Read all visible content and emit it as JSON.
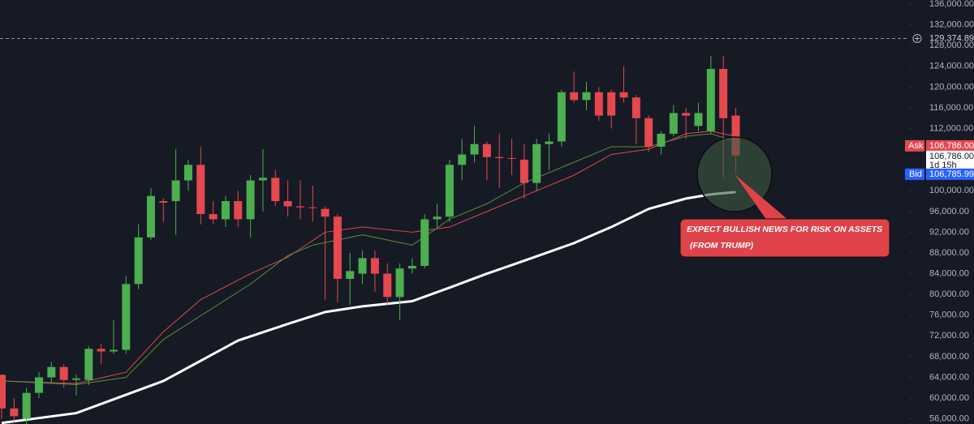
{
  "chart_data": {
    "type": "candlestick",
    "open": [
      64500,
      58000,
      56000,
      61000,
      64000,
      66000,
      63500,
      63500,
      69500,
      69000,
      69300,
      82000,
      91000,
      98000,
      98000,
      102000,
      105000,
      95500,
      94500,
      98000,
      94500,
      102000,
      102500,
      98000,
      97000,
      96800,
      96500,
      95000,
      83000,
      84000,
      87000,
      84000,
      79500,
      85000,
      85500,
      94500,
      95000,
      105000,
      107000,
      109000,
      106500,
      106300,
      106000,
      101500,
      109000,
      109500,
      119000,
      117500,
      119000,
      119000,
      119000,
      118000,
      114000,
      108500,
      111000,
      115000,
      112500,
      111500,
      123500,
      114500
    ],
    "high": [
      64500,
      60000,
      62000,
      65000,
      67000,
      66500,
      64500,
      70000,
      70500,
      75000,
      83500,
      93500,
      100500,
      98500,
      108000,
      106000,
      108500,
      98000,
      99000,
      100000,
      103000,
      108000,
      104000,
      102000,
      102000,
      101000,
      97000,
      95500,
      88000,
      88500,
      88500,
      86000,
      86000,
      87000,
      95500,
      97500,
      106000,
      110000,
      112500,
      109500,
      111000,
      110000,
      109000,
      110000,
      111000,
      119500,
      123000,
      121000,
      120000,
      119500,
      124000,
      118500,
      114500,
      111500,
      116500,
      116000,
      117000,
      126000,
      126000,
      116000
    ],
    "low": [
      56000,
      55500,
      55000,
      60000,
      63000,
      62000,
      60500,
      62500,
      66500,
      68500,
      68500,
      81000,
      90500,
      94000,
      91500,
      100000,
      93500,
      93500,
      93000,
      93000,
      91000,
      96000,
      97000,
      95000,
      94500,
      94000,
      79000,
      78500,
      78000,
      82000,
      80500,
      78000,
      75000,
      84000,
      85000,
      93000,
      94000,
      102000,
      105500,
      102000,
      100500,
      103000,
      98500,
      100000,
      104000,
      108500,
      117000,
      115500,
      113500,
      112000,
      117000,
      109000,
      107500,
      107000,
      110500,
      110000,
      111500,
      111000,
      102500,
      103500
    ],
    "close": [
      58000,
      56500,
      61000,
      64000,
      66000,
      63500,
      63800,
      69500,
      69000,
      69300,
      82000,
      91000,
      99000,
      97700,
      102000,
      105000,
      95500,
      94500,
      98000,
      94500,
      102000,
      102500,
      98000,
      97000,
      96800,
      96700,
      95000,
      83000,
      84500,
      87000,
      84000,
      79500,
      85000,
      85500,
      94500,
      95000,
      105000,
      107000,
      109000,
      106500,
      106300,
      106200,
      101500,
      109000,
      109500,
      119000,
      117500,
      119000,
      114500,
      114500,
      118000,
      114000,
      108500,
      111000,
      115000,
      114500,
      115000,
      123500,
      114000,
      106786
    ],
    "up_color": "#4caf50",
    "down_color": "#e5484f",
    "ylim": [
      55000,
      136800
    ],
    "yticks": [
      {
        "value": 56000,
        "label": "56,000.00"
      },
      {
        "value": 60000,
        "label": "60,000.00"
      },
      {
        "value": 64000,
        "label": "64,000.00"
      },
      {
        "value": 68000,
        "label": "68,000.00"
      },
      {
        "value": 72000,
        "label": "72,000.00"
      },
      {
        "value": 76000,
        "label": "76,000.00"
      },
      {
        "value": 80000,
        "label": "80,000.00"
      },
      {
        "value": 84000,
        "label": "84,000.00"
      },
      {
        "value": 88000,
        "label": "88,000.00"
      },
      {
        "value": 92000,
        "label": "92,000.00"
      },
      {
        "value": 96000,
        "label": "96,000.00"
      },
      {
        "value": 100000,
        "label": "100,000.00"
      },
      {
        "value": 104000,
        "label": "104,000.00"
      },
      {
        "value": 108000,
        "label": "108,000.00"
      },
      {
        "value": 112000,
        "label": "112,000.00"
      },
      {
        "value": 116000,
        "label": "116,000.00"
      },
      {
        "value": 120000,
        "label": "120,000.00"
      },
      {
        "value": 124000,
        "label": "124,000.00"
      },
      {
        "value": 128000,
        "label": "128,000.00"
      },
      {
        "value": 132000,
        "label": "132,000.00"
      },
      {
        "value": 136000,
        "label": "136,000.00"
      }
    ],
    "lines": [
      {
        "color": "#ffffff",
        "width": 3,
        "x": [
          0,
          6,
          13,
          16,
          19,
          23,
          26,
          29,
          33,
          36,
          39,
          42,
          46,
          49,
          52,
          55,
          57,
          59
        ],
        "values": [
          55200,
          57100,
          63300,
          67200,
          71100,
          74300,
          76600,
          77700,
          78700,
          81300,
          84000,
          86500,
          89900,
          93000,
          96500,
          98500,
          99300,
          99750
        ]
      },
      {
        "color": "#e0484f",
        "width": 1,
        "x": [
          0,
          6,
          10,
          13,
          16,
          20,
          23,
          25,
          26,
          29,
          33,
          36,
          39,
          42,
          46,
          49,
          52,
          55,
          57,
          59
        ],
        "values": [
          63300,
          62800,
          65000,
          72800,
          79000,
          84000,
          87200,
          90400,
          92000,
          93000,
          92000,
          93000,
          96000,
          99000,
          103000,
          107000,
          108000,
          111000,
          111500,
          110500
        ]
      },
      {
        "color": "#5a8f3c",
        "width": 1,
        "x": [
          0,
          6,
          10,
          13,
          16,
          20,
          23,
          25,
          26,
          29,
          33,
          36,
          39,
          42,
          46,
          49,
          52,
          55,
          57,
          59
        ],
        "values": [
          63300,
          62600,
          64000,
          71300,
          75900,
          82000,
          87500,
          89500,
          90000,
          91500,
          89500,
          94500,
          97500,
          101500,
          105500,
          108500,
          108500,
          110500,
          111000,
          109500
        ]
      }
    ],
    "price_line": {
      "value": 129374.89,
      "label": "129,374.89"
    },
    "ask": {
      "label": "Ask",
      "value": 106786,
      "value_label": "106,786.00"
    },
    "last": {
      "value": 106786,
      "value_label": "106,786.00",
      "countdown": "1d 15h"
    },
    "bid": {
      "label": "Bid",
      "value": 106785.99,
      "value_label": "106,785.99"
    },
    "annotation": {
      "lines": [
        "EXPECT BULLISH NEWS FOR RISK ON ASSETS",
        "(FROM TRUMP)"
      ]
    }
  }
}
